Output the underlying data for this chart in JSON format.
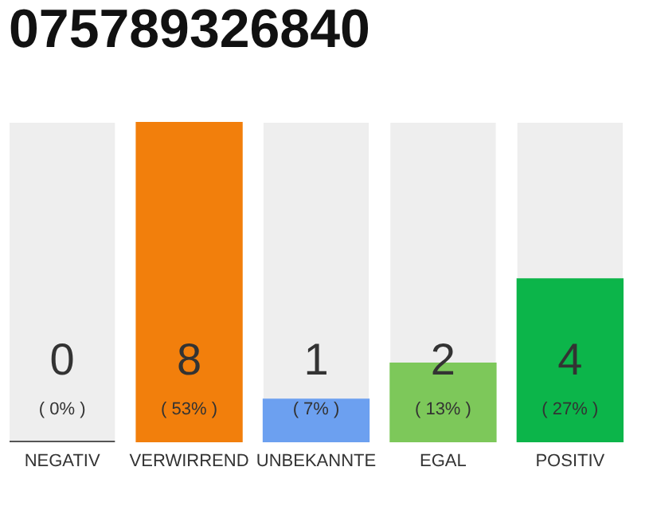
{
  "chart_data": {
    "type": "bar",
    "title": "075789326840",
    "categories": [
      "NEGATIV",
      "VERWIRREND",
      "UNBEKANNTE",
      "EGAL",
      "POSITIV"
    ],
    "values": [
      0,
      53,
      7,
      13,
      27
    ],
    "colors": [
      "#555555",
      "#f27f0c",
      "#6ca0f0",
      "#7dc85a",
      "#0cb54a"
    ],
    "value_labels": [
      "( 0% )",
      "( 53% )",
      "( 7% )",
      "( 13% )",
      "( 27% )"
    ],
    "annotations": [
      "0",
      "8",
      "1",
      "2",
      "4"
    ],
    "grid": false
  }
}
